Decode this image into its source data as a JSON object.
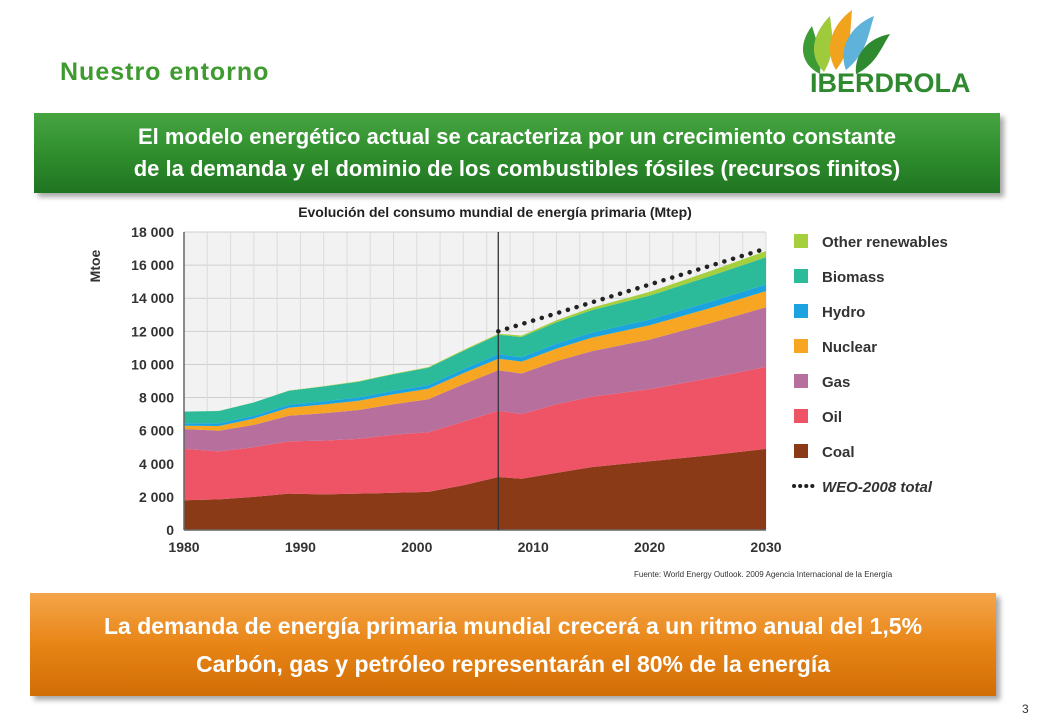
{
  "header": {
    "section_title": "Nuestro entorno",
    "logo_text": "IBERDROLA"
  },
  "banner_top": {
    "line1": "El modelo energético actual se caracteriza por un crecimiento constante",
    "line2": "de la demanda y el dominio de los combustibles fósiles (recursos finitos)"
  },
  "chart_title": "Evolución del consumo mundial de energía primaria (Mtep)",
  "source": "Fuente: World Energy Outlook. 2009 Agencia Internacional de la Energía",
  "banner_bottom": {
    "line1": "La demanda de energía primaria mundial crecerá a un ritmo anual del 1,5%",
    "line2": "Carbón, gas y petróleo representarán el 80% de la energía"
  },
  "page_number": "3",
  "chart_data": {
    "type": "area",
    "stacked": true,
    "ylabel": "Mtoe",
    "xlabel": "",
    "ylim": [
      0,
      18000
    ],
    "xlim": [
      1980,
      2030
    ],
    "y_ticks": [
      0,
      2000,
      4000,
      6000,
      8000,
      10000,
      12000,
      14000,
      16000,
      18000
    ],
    "y_tick_labels": [
      "0",
      "2 000",
      "4 000",
      "6 000",
      "8 000",
      "10 000",
      "12 000",
      "14 000",
      "16 000",
      "18 000"
    ],
    "x_ticks": [
      1980,
      1990,
      2000,
      2010,
      2020,
      2030
    ],
    "x_tick_labels": [
      "1980",
      "1990",
      "2000",
      "2010",
      "2020",
      "2030"
    ],
    "grid": true,
    "legend_position": "right",
    "divider_year": 2007,
    "x": [
      1980,
      1983,
      1986,
      1989,
      1992,
      1995,
      1998,
      2001,
      2004,
      2007,
      2009,
      2012,
      2015,
      2020,
      2025,
      2030
    ],
    "series": [
      {
        "name": "Coal",
        "color": "#8b3a17",
        "values": [
          1800,
          1850,
          2000,
          2200,
          2150,
          2200,
          2250,
          2300,
          2700,
          3200,
          3100,
          3450,
          3800,
          4150,
          4500,
          4900
        ]
      },
      {
        "name": "Oil",
        "color": "#ee5466",
        "values": [
          3100,
          2900,
          3000,
          3150,
          3250,
          3300,
          3500,
          3600,
          3850,
          4000,
          3900,
          4150,
          4250,
          4350,
          4650,
          4950
        ]
      },
      {
        "name": "Gas",
        "color": "#b7709d",
        "values": [
          1200,
          1250,
          1350,
          1550,
          1650,
          1750,
          1850,
          2000,
          2250,
          2450,
          2450,
          2600,
          2750,
          3000,
          3300,
          3600
        ]
      },
      {
        "name": "Nuclear",
        "color": "#f6a623",
        "values": [
          200,
          280,
          380,
          480,
          530,
          560,
          600,
          630,
          680,
          700,
          720,
          760,
          810,
          870,
          920,
          980
        ]
      },
      {
        "name": "Hydro",
        "color": "#1aa3df",
        "values": [
          150,
          160,
          170,
          180,
          190,
          200,
          210,
          220,
          240,
          260,
          270,
          290,
          310,
          340,
          370,
          400
        ]
      },
      {
        "name": "Biomass",
        "color": "#2bbb9b",
        "values": [
          700,
          750,
          800,
          850,
          900,
          950,
          1000,
          1050,
          1100,
          1180,
          1220,
          1300,
          1350,
          1450,
          1550,
          1650
        ]
      },
      {
        "name": "Other renewables",
        "color": "#a6cf3e",
        "values": [
          0,
          5,
          10,
          15,
          20,
          25,
          30,
          40,
          50,
          60,
          80,
          120,
          160,
          220,
          300,
          370
        ]
      }
    ],
    "total_series": {
      "name": "WEO-2008 total",
      "x": [
        2007,
        2030
      ],
      "values": [
        12000,
        17000
      ]
    }
  }
}
